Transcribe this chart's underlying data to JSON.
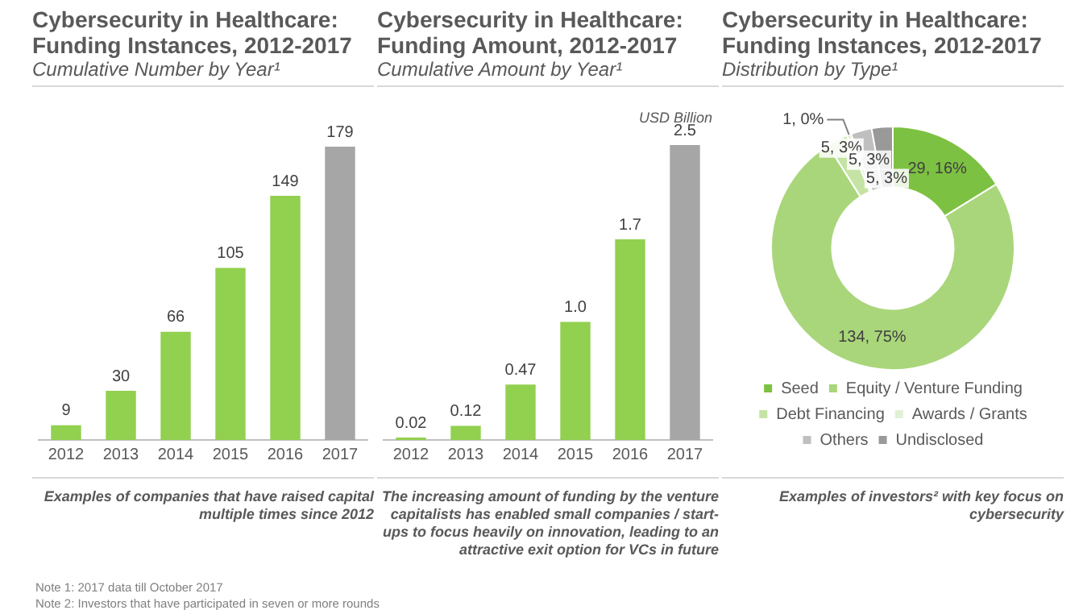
{
  "chart_data": [
    {
      "type": "bar",
      "title": "Cybersecurity in Healthcare: Funding Instances, 2012-2017",
      "subtitle": "Cumulative Number by Year¹",
      "categories": [
        "2012",
        "2013",
        "2014",
        "2015",
        "2016",
        "2017"
      ],
      "values": [
        9,
        30,
        66,
        105,
        149,
        179
      ],
      "colors": [
        "#92d050",
        "#92d050",
        "#92d050",
        "#92d050",
        "#92d050",
        "#a6a6a6"
      ],
      "data_labels": true,
      "grid": false,
      "legend": false,
      "tick_labels": "x",
      "annotations": [
        "Examples of companies that have raised capital multiple times since 2012",
        "Note 1: 2017 data till October 2017",
        "Note 2: Investors that have participated in seven or more rounds"
      ]
    },
    {
      "type": "bar",
      "title": "Cybersecurity in Healthcare: Funding Amount, 2012-2017",
      "subtitle": "Cumulative Amount by Year¹",
      "ylabel": "USD Billion",
      "categories": [
        "2012",
        "2013",
        "2014",
        "2015",
        "2016",
        "2017"
      ],
      "values": [
        0.02,
        0.12,
        0.47,
        1.0,
        1.7,
        2.5
      ],
      "value_labels": [
        "0.02",
        "0.12",
        "0.47",
        "1.0",
        "1.7",
        "2.5"
      ],
      "colors": [
        "#92d050",
        "#92d050",
        "#92d050",
        "#92d050",
        "#92d050",
        "#a6a6a6"
      ],
      "grid": false,
      "legend": false,
      "tick_labels": "x",
      "annotations": [
        "The increasing amount of funding by the venture capitalists has enabled small companies / start-ups to focus heavily on innovation, leading to an attractive exit option for VCs in future"
      ]
    },
    {
      "type": "donut",
      "title": "Cybersecurity in Healthcare: Funding Instances, 2012-2017",
      "subtitle": "Distribution by Type¹",
      "categories": [
        "Seed",
        "Equity / Venture Funding",
        "Debt Financing",
        "Awards / Grants",
        "Others",
        "Undisclosed"
      ],
      "values": [
        29,
        134,
        5,
        1,
        5,
        5
      ],
      "value_labels": [
        "29, 16%",
        "134, 75%",
        "5, 3%",
        "1, 0%",
        "5, 3%",
        "5, 3%"
      ],
      "colors": [
        "#7dc142",
        "#a9d67a",
        "#c5e3a5",
        "#e2f0d6",
        "#bfbfbf",
        "#999999"
      ],
      "legend": "bottom",
      "annotations": [
        "Examples of investors² with key focus on cybersecurity"
      ]
    }
  ]
}
